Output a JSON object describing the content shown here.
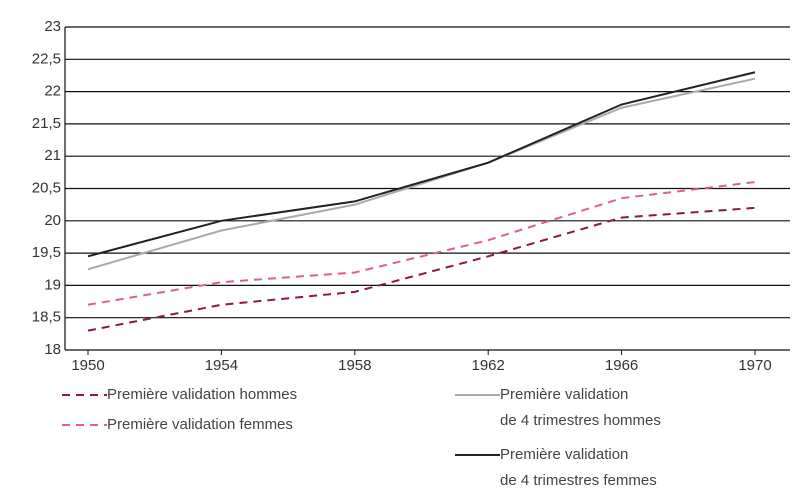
{
  "chart_data": {
    "type": "line",
    "x": [
      1950,
      1954,
      1958,
      1962,
      1966,
      1970
    ],
    "xlim": [
      1950,
      1970
    ],
    "xticks": [
      1950,
      1954,
      1958,
      1962,
      1966,
      1970
    ],
    "ylim": [
      18,
      23
    ],
    "yticks": [
      18,
      {
        "value": 18.5,
        "label": "18,5"
      },
      19,
      {
        "value": 19.5,
        "label": "19,5"
      },
      20,
      {
        "value": 20.5,
        "label": "20,5"
      },
      21,
      {
        "value": 21.5,
        "label": "21,5"
      },
      22,
      {
        "value": 22.5,
        "label": "22,5"
      },
      23
    ],
    "grid": true,
    "series": [
      {
        "name": "Première validation hommes",
        "color": "#8b1a3a",
        "style": "dashed",
        "values": [
          18.3,
          18.7,
          18.9,
          19.45,
          20.05,
          20.2
        ]
      },
      {
        "name": "Première validation femmes",
        "color": "#e0607e",
        "style": "dashed",
        "values": [
          18.7,
          19.05,
          19.2,
          19.7,
          20.35,
          20.6
        ]
      },
      {
        "name": "Première validation\nde 4 trimestres hommes",
        "color": "#aaaaaa",
        "style": "solid",
        "values": [
          19.25,
          19.85,
          20.25,
          20.9,
          21.75,
          22.2
        ]
      },
      {
        "name": "Première validation\nde 4 trimestres femmes",
        "color": "#222222",
        "style": "solid",
        "values": [
          19.45,
          20.0,
          20.3,
          20.9,
          21.8,
          22.3
        ]
      }
    ]
  }
}
